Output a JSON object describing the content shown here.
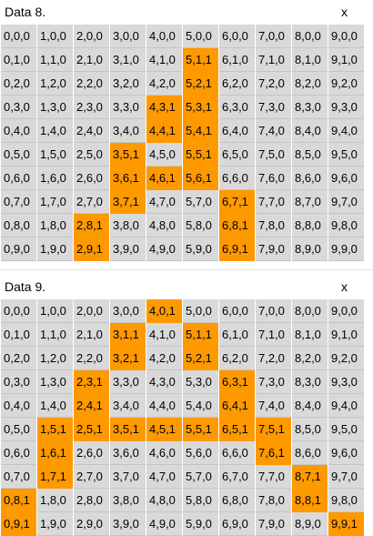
{
  "colors": {
    "cell": "#d9d9d9",
    "highlight": "#ff9900",
    "background": "#ffffff"
  },
  "blocks": [
    {
      "title": "Data 8.",
      "x_label": "x",
      "rows": [
        [
          "0,0,0",
          "1,0,0",
          "2,0,0",
          "3,0,0",
          "4,0,0",
          "5,0,0",
          "6,0,0",
          "7,0,0",
          "8,0,0",
          "9,0,0"
        ],
        [
          "0,1,0",
          "1,1,0",
          "2,1,0",
          "3,1,0",
          "4,1,0",
          "5,1,1",
          "6,1,0",
          "7,1,0",
          "8,1,0",
          "9,1,0"
        ],
        [
          "0,2,0",
          "1,2,0",
          "2,2,0",
          "3,2,0",
          "4,2,0",
          "5,2,1",
          "6,2,0",
          "7,2,0",
          "8,2,0",
          "9,2,0"
        ],
        [
          "0,3,0",
          "1,3,0",
          "2,3,0",
          "3,3,0",
          "4,3,1",
          "5,3,1",
          "6,3,0",
          "7,3,0",
          "8,3,0",
          "9,3,0"
        ],
        [
          "0,4,0",
          "1,4,0",
          "2,4,0",
          "3,4,0",
          "4,4,1",
          "5,4,1",
          "6,4,0",
          "7,4,0",
          "8,4,0",
          "9,4,0"
        ],
        [
          "0,5,0",
          "1,5,0",
          "2,5,0",
          "3,5,1",
          "4,5,0",
          "5,5,1",
          "6,5,0",
          "7,5,0",
          "8,5,0",
          "9,5,0"
        ],
        [
          "0,6,0",
          "1,6,0",
          "2,6,0",
          "3,6,1",
          "4,6,1",
          "5,6,1",
          "6,6,0",
          "7,6,0",
          "8,6,0",
          "9,6,0"
        ],
        [
          "0,7,0",
          "1,7,0",
          "2,7,0",
          "3,7,1",
          "4,7,0",
          "5,7,0",
          "6,7,1",
          "7,7,0",
          "8,7,0",
          "9,7,0"
        ],
        [
          "0,8,0",
          "1,8,0",
          "2,8,1",
          "3,8,0",
          "4,8,0",
          "5,8,0",
          "6,8,1",
          "7,8,0",
          "8,8,0",
          "9,8,0"
        ],
        [
          "0,9,0",
          "1,9,0",
          "2,9,1",
          "3,9,0",
          "4,9,0",
          "5,9,0",
          "6,9,1",
          "7,9,0",
          "8,9,0",
          "9,9,0"
        ]
      ]
    },
    {
      "title": "Data 9.",
      "x_label": "x",
      "rows": [
        [
          "0,0,0",
          "1,0,0",
          "2,0,0",
          "3,0,0",
          "4,0,1",
          "5,0,0",
          "6,0,0",
          "7,0,0",
          "8,0,0",
          "9,0,0"
        ],
        [
          "0,1,0",
          "1,1,0",
          "2,1,0",
          "3,1,1",
          "4,1,0",
          "5,1,1",
          "6,1,0",
          "7,1,0",
          "8,1,0",
          "9,1,0"
        ],
        [
          "0,2,0",
          "1,2,0",
          "2,2,0",
          "3,2,1",
          "4,2,0",
          "5,2,1",
          "6,2,0",
          "7,2,0",
          "8,2,0",
          "9,2,0"
        ],
        [
          "0,3,0",
          "1,3,0",
          "2,3,1",
          "3,3,0",
          "4,3,0",
          "5,3,0",
          "6,3,1",
          "7,3,0",
          "8,3,0",
          "9,3,0"
        ],
        [
          "0,4,0",
          "1,4,0",
          "2,4,1",
          "3,4,0",
          "4,4,0",
          "5,4,0",
          "6,4,1",
          "7,4,0",
          "8,4,0",
          "9,4,0"
        ],
        [
          "0,5,0",
          "1,5,1",
          "2,5,1",
          "3,5,1",
          "4,5,1",
          "5,5,1",
          "6,5,1",
          "7,5,1",
          "8,5,0",
          "9,5,0"
        ],
        [
          "0,6,0",
          "1,6,1",
          "2,6,0",
          "3,6,0",
          "4,6,0",
          "5,6,0",
          "6,6,0",
          "7,6,1",
          "8,6,0",
          "9,6,0"
        ],
        [
          "0,7,0",
          "1,7,1",
          "2,7,0",
          "3,7,0",
          "4,7,0",
          "5,7,0",
          "6,7,0",
          "7,7,0",
          "8,7,1",
          "9,7,0"
        ],
        [
          "0,8,1",
          "1,8,0",
          "2,8,0",
          "3,8,0",
          "4,8,0",
          "5,8,0",
          "6,8,0",
          "7,8,0",
          "8,8,1",
          "9,8,0"
        ],
        [
          "0,9,1",
          "1,9,0",
          "2,9,0",
          "3,9,0",
          "4,9,0",
          "5,9,0",
          "6,9,0",
          "7,9,0",
          "8,9,0",
          "9,9,1"
        ]
      ]
    }
  ]
}
